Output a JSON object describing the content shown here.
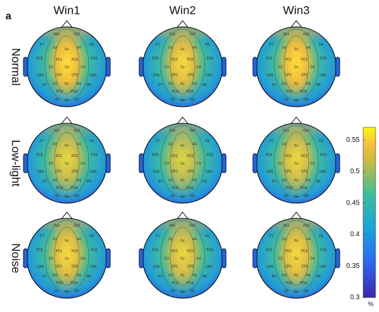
{
  "figure": {
    "panel_label": "a",
    "columns": [
      "Win1",
      "Win2",
      "Win3"
    ],
    "rows": [
      "Normal",
      "Low-light",
      "Noise"
    ],
    "electrodes": [
      "Fp1",
      "Fp2",
      "F7",
      "F3",
      "Fz",
      "F4",
      "F8",
      "FC5",
      "FC1",
      "FC2",
      "FC6",
      "C3",
      "Cz",
      "C4",
      "CP5",
      "CP1",
      "CP2",
      "CP6",
      "P7",
      "P3",
      "Pz",
      "P4",
      "P8",
      "PO3",
      "PO4",
      "O1",
      "Oz",
      "O2"
    ],
    "colorbar": {
      "clim": [
        0.3,
        0.57
      ],
      "ticks": [
        0.3,
        0.35,
        0.4,
        0.45,
        0.5,
        0.55
      ],
      "unit": "%"
    }
  }
}
